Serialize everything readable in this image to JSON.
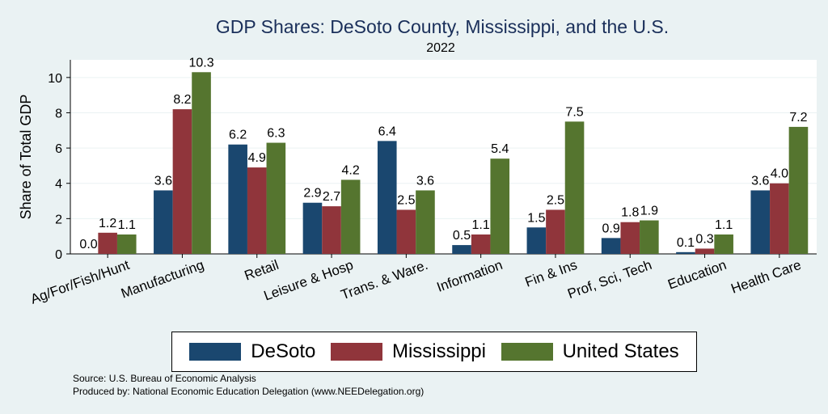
{
  "chart_data": {
    "type": "bar",
    "title": "GDP Shares: DeSoto County, Mississippi, and the U.S.",
    "subtitle": "2022",
    "ylabel": "Share of Total GDP",
    "xlabel": "",
    "ylim": [
      0,
      11
    ],
    "yticks": [
      0,
      2,
      4,
      6,
      8,
      10
    ],
    "grid": true,
    "legend_position": "bottom",
    "categories": [
      "Ag/For/Fish/Hunt",
      "Manufacturing",
      "Retail",
      "Leisure & Hosp",
      "Trans. & Ware.",
      "Information",
      "Fin & Ins",
      "Prof, Sci, Tech",
      "Education",
      "Health Care"
    ],
    "series": [
      {
        "name": "DeSoto",
        "color": "#1a476f",
        "values": [
          0.0,
          3.6,
          6.2,
          2.9,
          6.4,
          0.5,
          1.5,
          0.9,
          0.1,
          3.6
        ]
      },
      {
        "name": "Mississippi",
        "color": "#90353b",
        "values": [
          1.2,
          8.2,
          4.9,
          2.7,
          2.5,
          1.1,
          2.5,
          1.8,
          0.3,
          4.0
        ]
      },
      {
        "name": "United States",
        "color": "#55752f",
        "values": [
          1.1,
          10.3,
          6.3,
          4.2,
          3.6,
          5.4,
          7.5,
          1.9,
          1.1,
          7.2
        ]
      }
    ]
  },
  "notes": {
    "source": "Source: U.S. Bureau of Economic Analysis",
    "produced_by": "Produced by: National Economic Education Delegation (www.NEEDelegation.org)"
  }
}
